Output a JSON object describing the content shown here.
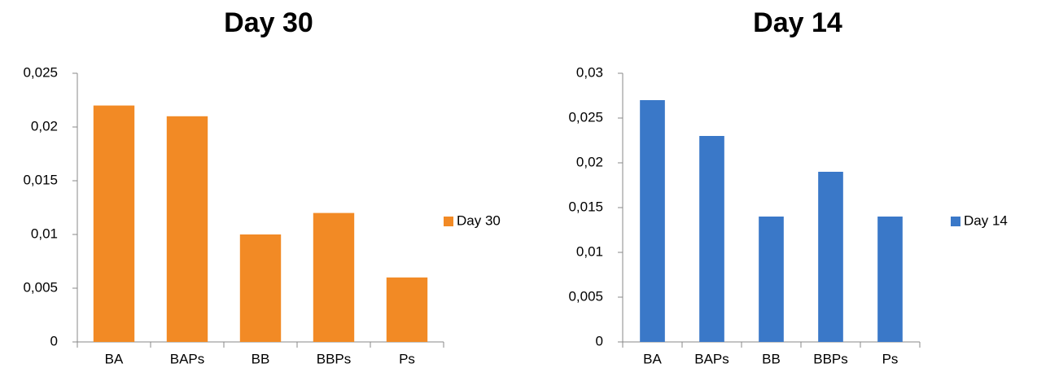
{
  "chart_data": [
    {
      "type": "bar",
      "title": "Day 30",
      "categories": [
        "BA",
        "BAPs",
        "BB",
        "BBPs",
        "Ps"
      ],
      "series": [
        {
          "name": "Day 30",
          "color": "#f28a25",
          "values": [
            0.022,
            0.021,
            0.01,
            0.012,
            0.006
          ]
        }
      ],
      "ylim": [
        0,
        0.025
      ],
      "yticks": [
        0,
        {
          "value": 0.005,
          "label": "0,005"
        },
        {
          "value": 0.01,
          "label": "0,01"
        },
        {
          "value": 0.015,
          "label": "0,015"
        },
        {
          "value": 0.02,
          "label": "0,02"
        },
        {
          "value": 0.025,
          "label": "0,025"
        }
      ],
      "legend": "right"
    },
    {
      "type": "bar",
      "title": "Day 14",
      "categories": [
        "BA",
        "BAPs",
        "BB",
        "BBPs",
        "Ps"
      ],
      "series": [
        {
          "name": "Day 14",
          "color": "#3a78c8",
          "values": [
            0.027,
            0.023,
            0.014,
            0.019,
            0.014
          ]
        }
      ],
      "ylim": [
        0,
        0.03
      ],
      "yticks": [
        0,
        {
          "value": 0.005,
          "label": "0,005"
        },
        {
          "value": 0.01,
          "label": "0,01"
        },
        {
          "value": 0.015,
          "label": "0,015"
        },
        {
          "value": 0.02,
          "label": "0,02"
        },
        {
          "value": 0.025,
          "label": "0,025"
        },
        {
          "value": 0.03,
          "label": "0,03"
        }
      ],
      "legend": "right"
    }
  ]
}
